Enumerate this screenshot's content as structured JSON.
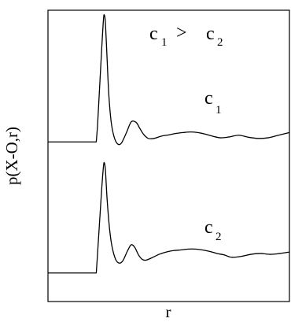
{
  "chart_data": {
    "type": "line",
    "title": "",
    "xlabel": "r",
    "ylabel": "p(X-O,r)",
    "annotations": {
      "comparison": {
        "left_base": "c",
        "left_sub": "1",
        "operator": ">",
        "right_base": "c",
        "right_sub": "2"
      },
      "upper_label": {
        "base": "c",
        "sub": "1"
      },
      "lower_label": {
        "base": "c",
        "sub": "2"
      }
    },
    "x_range": [
      0,
      10
    ],
    "y_range": [
      0,
      10
    ],
    "grid": false,
    "legend": "none",
    "series": [
      {
        "name": "c1",
        "x": [
          0,
          2.0,
          2.05,
          2.22,
          2.3,
          2.34,
          2.38,
          2.45,
          2.52,
          2.62,
          2.75,
          2.9,
          3.05,
          3.25,
          3.45,
          3.65,
          3.8,
          3.95,
          4.15,
          4.4,
          4.7,
          5.0,
          5.3,
          5.6,
          5.9,
          6.2,
          6.5,
          6.85,
          7.15,
          7.5,
          7.9,
          8.3,
          8.7,
          9.1,
          9.5,
          9.8,
          10.0
        ],
        "y": [
          5.48,
          5.48,
          6.0,
          8.6,
          9.7,
          9.82,
          9.55,
          8.3,
          7.1,
          6.15,
          5.62,
          5.4,
          5.45,
          5.8,
          6.17,
          6.15,
          5.95,
          5.75,
          5.6,
          5.6,
          5.68,
          5.72,
          5.77,
          5.8,
          5.82,
          5.8,
          5.75,
          5.67,
          5.62,
          5.65,
          5.71,
          5.64,
          5.6,
          5.62,
          5.7,
          5.76,
          5.8
        ]
      },
      {
        "name": "c2",
        "x": [
          0,
          2.0,
          2.05,
          2.22,
          2.3,
          2.34,
          2.38,
          2.45,
          2.55,
          2.65,
          2.8,
          2.95,
          3.1,
          3.3,
          3.45,
          3.6,
          3.75,
          3.9,
          4.05,
          4.3,
          4.6,
          4.9,
          5.2,
          5.5,
          5.8,
          6.1,
          6.4,
          6.7,
          7.0,
          7.3,
          7.6,
          8.0,
          8.4,
          8.8,
          9.2,
          9.6,
          10.0
        ],
        "y": [
          0.98,
          0.98,
          1.6,
          3.8,
          4.65,
          4.75,
          4.5,
          3.5,
          2.5,
          1.9,
          1.45,
          1.32,
          1.4,
          1.75,
          1.95,
          1.85,
          1.6,
          1.45,
          1.42,
          1.5,
          1.62,
          1.7,
          1.75,
          1.77,
          1.8,
          1.8,
          1.77,
          1.72,
          1.65,
          1.6,
          1.52,
          1.55,
          1.62,
          1.65,
          1.62,
          1.65,
          1.7
        ]
      }
    ]
  }
}
